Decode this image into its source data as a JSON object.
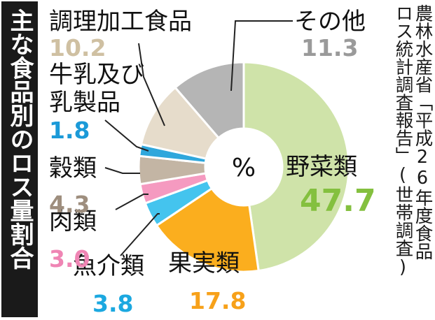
{
  "title": "主な食品別のロス量割合",
  "source_lines": [
    "農林水産省「平成26年度食品",
    "ロス統計調査報告」(世帯調査)"
  ],
  "center_label": "%",
  "chart_data": {
    "type": "pie",
    "style": "donut",
    "unit": "%",
    "title": "主な食品別のロス量割合",
    "slices": [
      {
        "name": "野菜類",
        "value": 47.7,
        "value_label": "47.7",
        "color": "#cfe3a9",
        "text_color": "#84c03f"
      },
      {
        "name": "果実類",
        "value": 17.8,
        "value_label": "17.8",
        "color": "#fbae1e",
        "text_color": "#f7a11a"
      },
      {
        "name": "魚介類",
        "value": 3.8,
        "value_label": "3.8",
        "color": "#44c4ee",
        "text_color": "#1ba8e0"
      },
      {
        "name": "肉類",
        "value": 3.0,
        "value_label": "3.0",
        "color": "#f59ac0",
        "text_color": "#ef85b4"
      },
      {
        "name": "穀類",
        "value": 4.3,
        "value_label": "4.3",
        "color": "#c3b5a4",
        "text_color": "#9e8e7e"
      },
      {
        "name": "牛乳及び乳製品",
        "value": 1.8,
        "value_label": "1.8",
        "color": "#2fa7dc",
        "text_color": "#1b9ad8"
      },
      {
        "name": "調理加工食品",
        "value": 10.2,
        "value_label": "10.2",
        "color": "#e6dccb",
        "text_color": "#cfc0a2"
      },
      {
        "name": "その他",
        "value": 11.3,
        "value_label": "11.3",
        "color": "#b5b5b5",
        "text_color": "#9a9a9a"
      }
    ]
  }
}
